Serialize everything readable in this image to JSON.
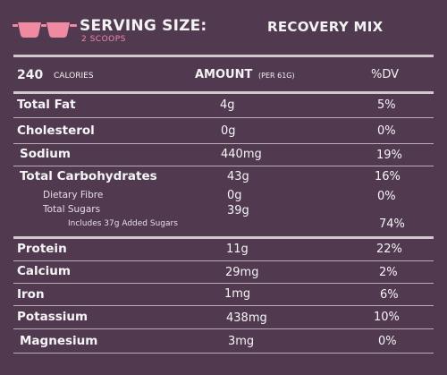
{
  "header": {
    "serving_title": "SERVING SIZE:",
    "serving_amount": "2 SCOOPS",
    "product_name": "RECOVERY MIX",
    "scoop_icon_color": "#f08aa3"
  },
  "columns": {
    "calories_value": "240",
    "calories_label": "CALORIES",
    "amount_label": "AMOUNT",
    "amount_sub": "(PER 61G)",
    "dv_label": "%DV"
  },
  "rows": [
    {
      "name": "Total Fat",
      "amount": "4g",
      "dv": "5%"
    },
    {
      "name": "Cholesterol",
      "amount": "0g",
      "dv": "0%"
    },
    {
      "name": "Sodium",
      "amount": "440mg",
      "dv": "19%"
    },
    {
      "name": "Total Carbohydrates",
      "amount": "43g",
      "dv": "16%"
    },
    {
      "name": "Dietary Fibre",
      "amount": "0g",
      "dv": "0%"
    },
    {
      "name": "Total Sugars",
      "amount": "39g",
      "dv": ""
    },
    {
      "name": "Includes 37g Added Sugars",
      "amount": "",
      "dv": "74%"
    },
    {
      "name": "Protein",
      "amount": "11g",
      "dv": "22%"
    },
    {
      "name": "Calcium",
      "amount": "29mg",
      "dv": "2%"
    },
    {
      "name": "Iron",
      "amount": "1mg",
      "dv": "6%"
    },
    {
      "name": "Potassium",
      "amount": "438mg",
      "dv": "10%"
    },
    {
      "name": "Magnesium",
      "amount": "3mg",
      "dv": "0%"
    }
  ],
  "colors": {
    "background": "#513a50",
    "accent_pink": "#f08aa3",
    "text": "#f5f5f5"
  }
}
